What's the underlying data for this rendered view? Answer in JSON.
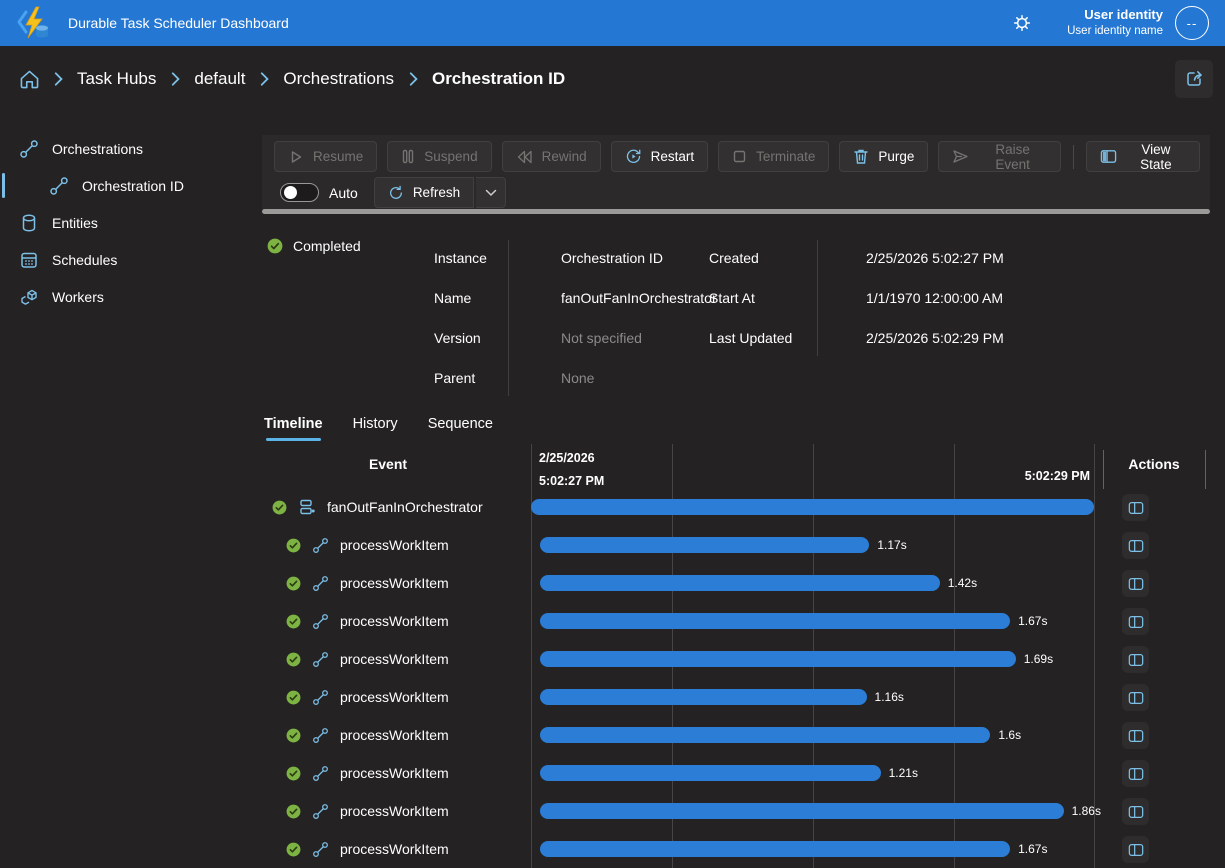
{
  "topbar": {
    "title": "Durable Task Scheduler Dashboard",
    "user": {
      "line1": "User identity",
      "line2": "User identity name",
      "avatar_text": "--"
    }
  },
  "breadcrumb": {
    "items": [
      "Task Hubs",
      "default",
      "Orchestrations",
      "Orchestration ID"
    ]
  },
  "sidebar": {
    "items": [
      {
        "label": "Orchestrations"
      },
      {
        "label": "Orchestration ID",
        "selected": true
      },
      {
        "label": "Entities"
      },
      {
        "label": "Schedules"
      },
      {
        "label": "Workers"
      }
    ]
  },
  "toolbar": {
    "buttons": [
      {
        "label": "Resume",
        "icon": "play-icon",
        "enabled": false
      },
      {
        "label": "Suspend",
        "icon": "pause-icon",
        "enabled": false
      },
      {
        "label": "Rewind",
        "icon": "rewind-icon",
        "enabled": false
      },
      {
        "label": "Restart",
        "icon": "restart-icon",
        "enabled": true
      },
      {
        "label": "Terminate",
        "icon": "stop-icon",
        "enabled": false
      },
      {
        "label": "Purge",
        "icon": "trash-icon",
        "enabled": true
      },
      {
        "label": "Raise Event",
        "icon": "send-icon",
        "enabled": false
      },
      {
        "label": "View State",
        "icon": "view-state-icon",
        "enabled": true
      }
    ],
    "auto_label": "Auto",
    "refresh_label": "Refresh"
  },
  "details": {
    "status": "Completed",
    "fields_left": [
      {
        "label": "Instance",
        "value": "Orchestration ID",
        "muted": false
      },
      {
        "label": "Name",
        "value": "fanOutFanInOrchestrator",
        "muted": false
      },
      {
        "label": "Version",
        "value": "Not specified",
        "muted": true
      },
      {
        "label": "Parent",
        "value": "None",
        "muted": true
      }
    ],
    "fields_right": [
      {
        "label": "Created",
        "value": "2/25/2026 5:02:27 PM"
      },
      {
        "label": "Start At",
        "value": "1/1/1970 12:00:00 AM"
      },
      {
        "label": "Last Updated",
        "value": "2/25/2026 5:02:29 PM"
      }
    ]
  },
  "tabs": [
    {
      "label": "Timeline",
      "active": true
    },
    {
      "label": "History",
      "active": false
    },
    {
      "label": "Sequence",
      "active": false
    }
  ],
  "timeline": {
    "event_header": "Event",
    "actions_header": "Actions",
    "axis": {
      "date": "2/25/2026",
      "start_time": "5:02:27 PM",
      "end_time": "5:02:29 PM",
      "total_seconds": 2
    },
    "rows": [
      {
        "name": "fanOutFanInOrchestrator",
        "type": "orchestration",
        "status": "completed",
        "start_s": 0,
        "duration_s": 2,
        "duration_label": ""
      },
      {
        "name": "processWorkItem",
        "type": "activity",
        "status": "completed",
        "start_s": 0.032,
        "duration_s": 1.17,
        "duration_label": "1.17s"
      },
      {
        "name": "processWorkItem",
        "type": "activity",
        "status": "completed",
        "start_s": 0.032,
        "duration_s": 1.42,
        "duration_label": "1.42s"
      },
      {
        "name": "processWorkItem",
        "type": "activity",
        "status": "completed",
        "start_s": 0.032,
        "duration_s": 1.67,
        "duration_label": "1.67s"
      },
      {
        "name": "processWorkItem",
        "type": "activity",
        "status": "completed",
        "start_s": 0.032,
        "duration_s": 1.69,
        "duration_label": "1.69s"
      },
      {
        "name": "processWorkItem",
        "type": "activity",
        "status": "completed",
        "start_s": 0.032,
        "duration_s": 1.16,
        "duration_label": "1.16s"
      },
      {
        "name": "processWorkItem",
        "type": "activity",
        "status": "completed",
        "start_s": 0.032,
        "duration_s": 1.6,
        "duration_label": "1.6s"
      },
      {
        "name": "processWorkItem",
        "type": "activity",
        "status": "completed",
        "start_s": 0.032,
        "duration_s": 1.21,
        "duration_label": "1.21s"
      },
      {
        "name": "processWorkItem",
        "type": "activity",
        "status": "completed",
        "start_s": 0.032,
        "duration_s": 1.86,
        "duration_label": "1.86s"
      },
      {
        "name": "processWorkItem",
        "type": "activity",
        "status": "completed",
        "start_s": 0.032,
        "duration_s": 1.67,
        "duration_label": "1.67s"
      }
    ]
  },
  "colors": {
    "topbar": "#2577d4",
    "accent_light": "#7cc0e8",
    "bar": "#2b7dd6",
    "success": "#7cb342",
    "scrollbar": "#9c9a98"
  }
}
